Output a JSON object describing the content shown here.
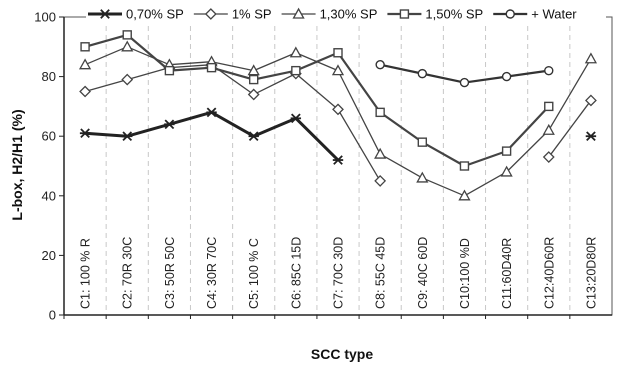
{
  "chart_data": {
    "type": "line",
    "xlabel": "SCC type",
    "ylabel": "L-box, H2/H1  (%)",
    "ylim": [
      0,
      100
    ],
    "yticks": [
      0,
      20,
      40,
      60,
      80,
      100
    ],
    "grid": {
      "x": "dashed",
      "y": "none"
    },
    "legend_position": "top",
    "categories": [
      "C1: 100 % R",
      "C2: 70R 30C",
      "C3: 50R 50C",
      "C4: 30R 70C",
      "C5: 100 % C",
      "C6: 85C 15D",
      "C7: 70C 30D",
      "C8: 55C 45D",
      "C9: 40C 60D",
      "C10:100 %D",
      "C11:60D40R",
      "C12:40D60R",
      "C13:20D80R"
    ],
    "series": [
      {
        "name": "0,70% SP",
        "marker": "asterisk",
        "color": "#222222",
        "width": 3,
        "values": [
          61,
          60,
          64,
          68,
          60,
          66,
          52,
          null,
          null,
          null,
          null,
          null,
          60
        ]
      },
      {
        "name": "1% SP",
        "marker": "diamond",
        "color": "#444444",
        "width": 1.3,
        "values": [
          75,
          79,
          83,
          84,
          74,
          81,
          69,
          45,
          null,
          null,
          null,
          53,
          72
        ]
      },
      {
        "name": "1,30% SP",
        "marker": "triangle",
        "color": "#444444",
        "width": 1.3,
        "values": [
          84,
          90,
          84,
          85,
          82,
          88,
          82,
          54,
          46,
          40,
          48,
          62,
          86
        ]
      },
      {
        "name": "1,50% SP",
        "marker": "square",
        "color": "#444444",
        "width": 2.2,
        "values": [
          90,
          94,
          82,
          83,
          79,
          82,
          88,
          68,
          58,
          50,
          55,
          70,
          null
        ]
      },
      {
        "name": "+ Water",
        "marker": "circle",
        "color": "#333333",
        "width": 2.2,
        "values": [
          null,
          null,
          null,
          null,
          null,
          null,
          null,
          84,
          81,
          78,
          80,
          82,
          null
        ]
      }
    ]
  }
}
